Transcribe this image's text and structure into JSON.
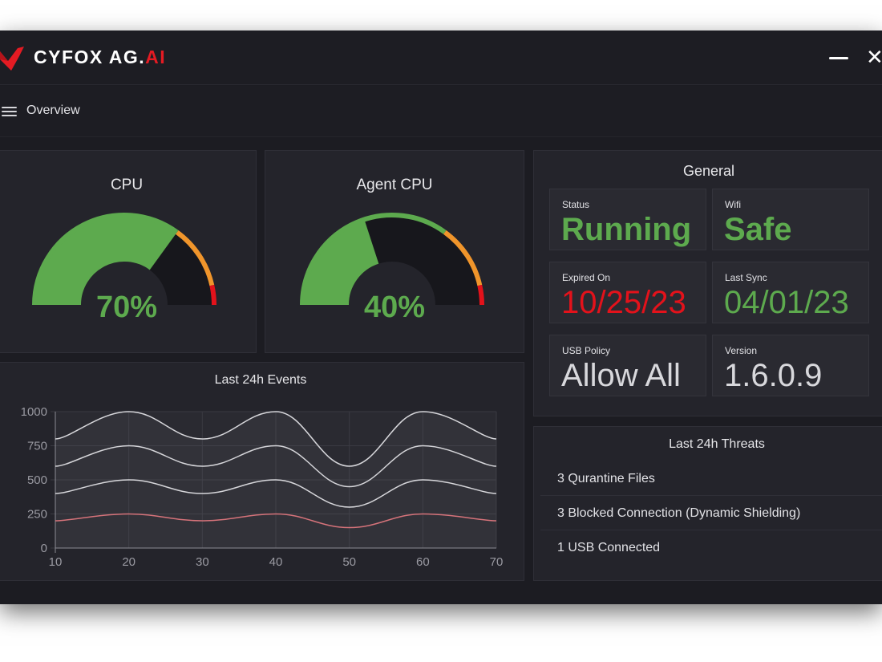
{
  "app": {
    "brand_main": "CYFOX AG.",
    "brand_accent": "AI",
    "logo_color": "#e41b23"
  },
  "window_controls": {
    "minimize": "minimize-icon",
    "close": "close-icon"
  },
  "nav": {
    "title": "Overview",
    "menu_icon": "hamburger-icon"
  },
  "gauges": [
    {
      "title": "CPU",
      "value_label": "70%",
      "percent": 70
    },
    {
      "title": "Agent CPU",
      "value_label": "40%",
      "percent": 40
    }
  ],
  "general": {
    "title": "General",
    "cards": [
      {
        "label": "Status",
        "value": "Running",
        "color": "#5daa4e"
      },
      {
        "label": "Wifi",
        "value": "Safe",
        "color": "#5daa4e"
      },
      {
        "label": "Expired On",
        "value": "10/25/23",
        "color": "#e3121b"
      },
      {
        "label": "Last Sync",
        "value": "04/01/23",
        "color": "#5daa4e"
      },
      {
        "label": "USB Policy",
        "value": "Allow All",
        "color": "#d8d8dc"
      },
      {
        "label": "Version",
        "value": "1.6.0.9",
        "color": "#d8d8dc"
      }
    ]
  },
  "threats": {
    "title": "Last 24h Threats",
    "items": [
      "3 Qurantine Files",
      "3 Blocked Connection (Dynamic Shielding)",
      "1 USB Connected"
    ]
  },
  "chart_data": {
    "type": "area",
    "title": "Last 24h Events",
    "x": [
      10,
      20,
      30,
      40,
      50,
      60,
      70
    ],
    "xlim": [
      10,
      70
    ],
    "ylim": [
      0,
      1000
    ],
    "x_ticks": [
      "10",
      "20",
      "30",
      "40",
      "50",
      "60",
      "70"
    ],
    "y_ticks": [
      "0",
      "250",
      "500",
      "750",
      "1000"
    ],
    "grid": true,
    "series": [
      {
        "values": [
          800,
          1000,
          800,
          1000,
          600,
          1000,
          800
        ],
        "color": "#d6d6da"
      },
      {
        "values": [
          600,
          750,
          600,
          750,
          450,
          750,
          600
        ],
        "color": "#d6d6da"
      },
      {
        "values": [
          400,
          500,
          400,
          500,
          300,
          500,
          400
        ],
        "color": "#d6d6da"
      },
      {
        "values": [
          200,
          250,
          200,
          250,
          150,
          250,
          200
        ],
        "color": "#d6737a"
      }
    ]
  }
}
